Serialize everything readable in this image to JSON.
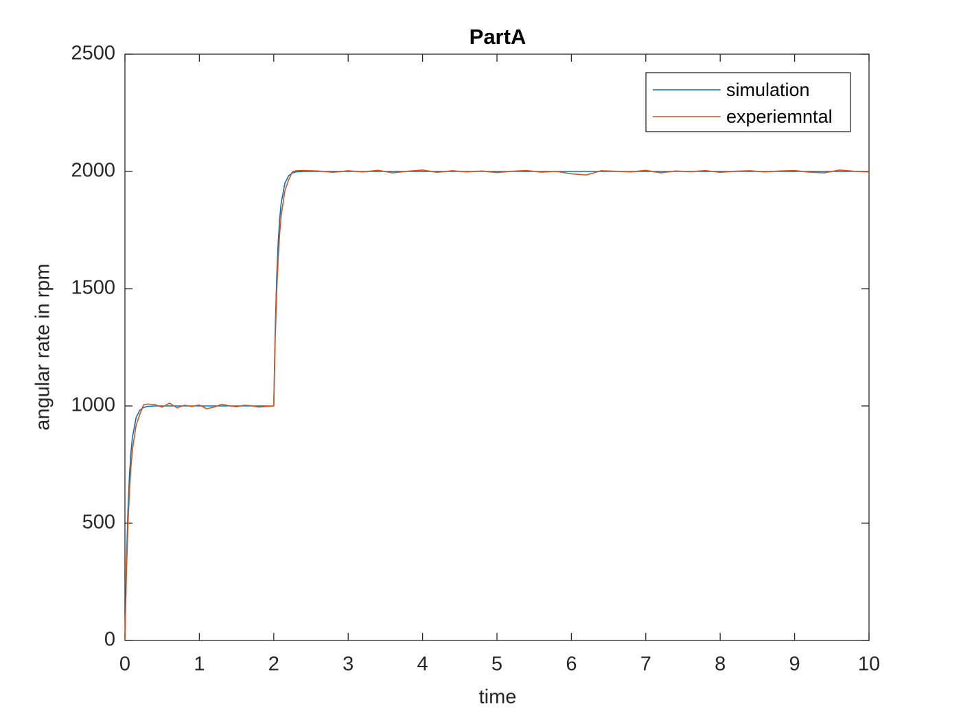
{
  "chart_data": {
    "type": "line",
    "title": "PartA",
    "x_label": "time",
    "y_label": "angular rate in rpm",
    "x": [
      0,
      0.02,
      0.04,
      0.06,
      0.08,
      0.1,
      0.15,
      0.2,
      0.25,
      0.3,
      0.4,
      0.5,
      0.6,
      0.7,
      0.8,
      0.9,
      1,
      1.1,
      1.2,
      1.3,
      1.4,
      1.5,
      1.6,
      1.7,
      1.8,
      1.9,
      2,
      2.02,
      2.04,
      2.06,
      2.08,
      2.1,
      2.15,
      2.2,
      2.25,
      2.3,
      2.4,
      2.6,
      2.8,
      3,
      3.2,
      3.4,
      3.6,
      3.8,
      4,
      4.2,
      4.4,
      4.6,
      4.8,
      5,
      5.2,
      5.4,
      5.6,
      5.8,
      6,
      6.2,
      6.4,
      6.6,
      6.8,
      7,
      7.2,
      7.4,
      7.6,
      7.8,
      8,
      8.2,
      8.4,
      8.6,
      8.8,
      9,
      9.2,
      9.4,
      9.6,
      9.8,
      10
    ],
    "series": [
      {
        "name": "simulation",
        "color": "#0072BD",
        "values": [
          0,
          330,
          551,
          699,
          798,
          865,
          950,
          982,
          993,
          998,
          1000,
          1000,
          1000,
          1000,
          1000,
          1000,
          1000,
          1000,
          1000,
          1000,
          1000,
          1000,
          1000,
          1000,
          1000,
          1000,
          1000,
          1330,
          1551,
          1699,
          1798,
          1865,
          1950,
          1982,
          1993,
          1998,
          2000,
          2000,
          2000,
          2000,
          2000,
          2000,
          2000,
          2000,
          2000,
          2000,
          2000,
          2000,
          2000,
          2000,
          2000,
          2000,
          2000,
          2000,
          2000,
          2000,
          2000,
          2000,
          2000,
          2000,
          2000,
          2000,
          2000,
          2000,
          2000,
          2000,
          2000,
          2000,
          2000,
          2000,
          2000,
          2000,
          2000,
          2000,
          2000
        ]
      },
      {
        "name": "experiemntal",
        "color": "#D95319",
        "values": [
          0,
          283,
          487,
          632,
          736,
          811,
          918,
          964,
          1005,
          1008,
          1006,
          995,
          1012,
          992,
          1003,
          998,
          1004,
          988,
          995,
          1007,
          1001,
          996,
          1003,
          1001,
          995,
          998,
          1000,
          1283,
          1487,
          1632,
          1736,
          1811,
          1918,
          1964,
          1998,
          2003,
          2004,
          2002,
          1996,
          2003,
          1998,
          2005,
          1994,
          2001,
          2006,
          1996,
          2003,
          1998,
          2002,
          1995,
          2001,
          2004,
          1997,
          2000,
          1990,
          1985,
          2003,
          2001,
          1998,
          2005,
          1994,
          2002,
          1999,
          2004,
          1996,
          2001,
          2003,
          1998,
          2002,
          2004,
          1997,
          1994,
          2006,
          2001,
          1998
        ]
      }
    ],
    "xlim": [
      0,
      10
    ],
    "ylim": [
      0,
      2500
    ],
    "xticks": [
      0,
      1,
      2,
      3,
      4,
      5,
      6,
      7,
      8,
      9,
      10
    ],
    "yticks": [
      0,
      500,
      1000,
      1500,
      2000,
      2500
    ],
    "legend": "northeast"
  }
}
